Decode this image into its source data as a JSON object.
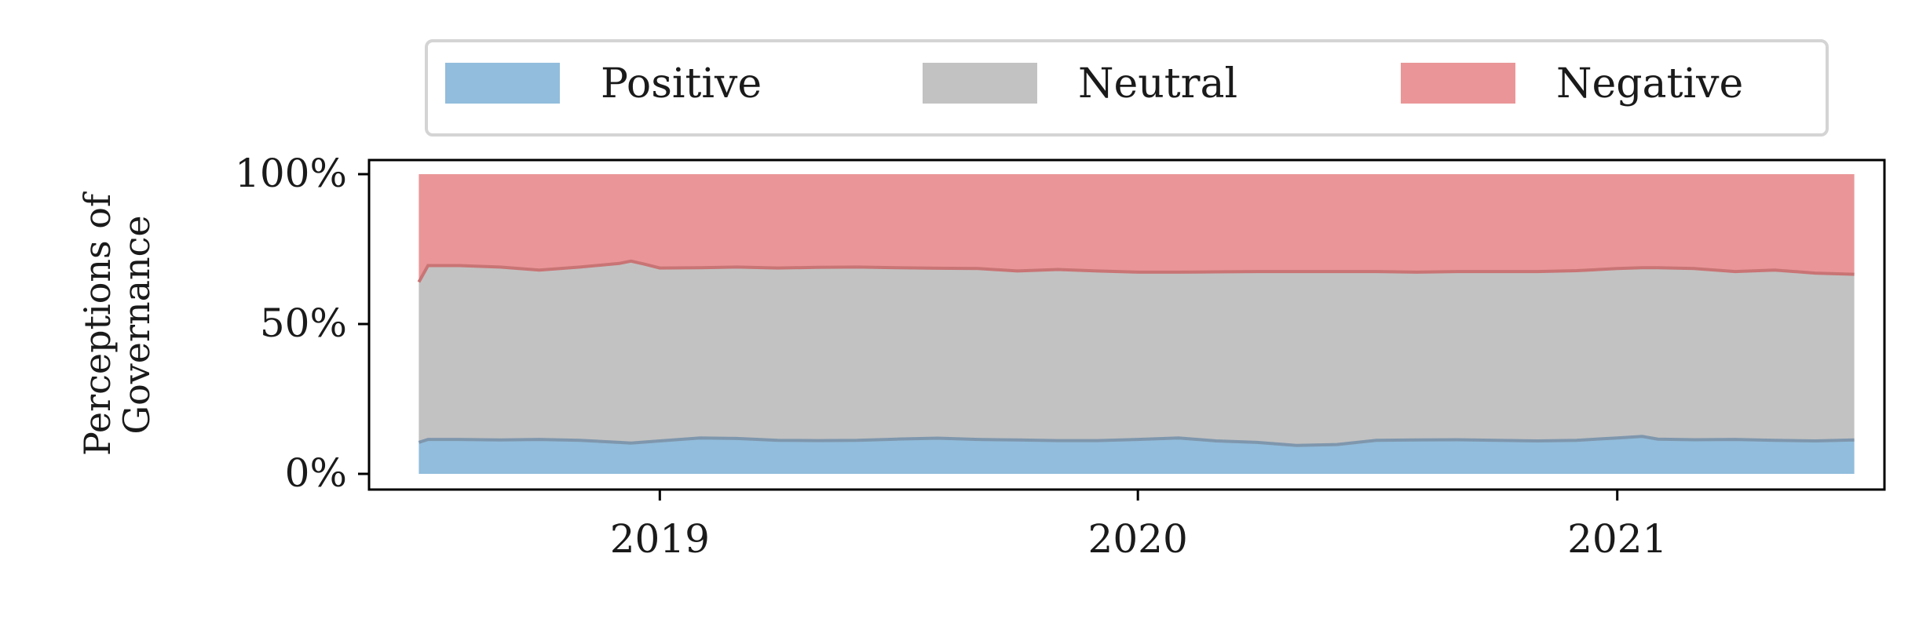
{
  "chart_data": {
    "type": "area",
    "stacked": true,
    "normalized": true,
    "title": "",
    "xlabel": "",
    "ylabel": [
      "Perceptions of",
      "Governance"
    ],
    "ylim": [
      0,
      100
    ],
    "yticks": [
      0,
      50,
      100
    ],
    "ytick_labels": [
      "0%",
      "50%",
      "100%"
    ],
    "xlim": [
      "2018-05-24",
      "2021-07-24"
    ],
    "xticks": [
      "2019-01-01",
      "2020-01-01",
      "2021-01-01"
    ],
    "xtick_labels": [
      "2019",
      "2020",
      "2021"
    ],
    "grid": false,
    "legend_position": "top",
    "x": [
      "2018-07-01",
      "2018-07-08",
      "2018-08-01",
      "2018-09-01",
      "2018-10-01",
      "2018-11-01",
      "2018-12-01",
      "2018-12-10",
      "2018-12-20",
      "2019-01-01",
      "2019-02-01",
      "2019-03-01",
      "2019-04-01",
      "2019-05-01",
      "2019-06-01",
      "2019-07-01",
      "2019-08-01",
      "2019-09-01",
      "2019-10-01",
      "2019-11-01",
      "2019-12-01",
      "2020-01-01",
      "2020-02-01",
      "2020-03-01",
      "2020-04-01",
      "2020-05-01",
      "2020-06-01",
      "2020-07-01",
      "2020-08-01",
      "2020-09-01",
      "2020-10-01",
      "2020-11-01",
      "2020-12-01",
      "2021-01-01",
      "2021-01-20",
      "2021-02-01",
      "2021-03-01",
      "2021-04-01",
      "2021-05-01",
      "2021-06-01",
      "2021-07-01"
    ],
    "series": [
      {
        "name": "Positive",
        "color": "#7fb1d6",
        "values": [
          10.5,
          11.5,
          11.5,
          11.3,
          11.5,
          11.2,
          10.5,
          10.3,
          10.6,
          11.0,
          12.0,
          11.8,
          11.2,
          11.1,
          11.2,
          11.6,
          11.9,
          11.5,
          11.3,
          11.1,
          11.1,
          11.5,
          12.0,
          11.0,
          10.5,
          9.5,
          9.8,
          11.2,
          11.3,
          11.4,
          11.2,
          11.0,
          11.2,
          12.0,
          12.5,
          11.6,
          11.4,
          11.5,
          11.2,
          11.0,
          11.3
        ]
      },
      {
        "name": "Neutral",
        "color": "#b7b7b7",
        "values": [
          53.5,
          58.0,
          58.0,
          57.7,
          56.5,
          57.8,
          59.7,
          60.7,
          59.4,
          57.7,
          56.8,
          57.2,
          57.5,
          57.8,
          57.8,
          57.2,
          56.7,
          57.0,
          56.4,
          57.1,
          56.6,
          55.8,
          55.3,
          56.4,
          57.0,
          58.0,
          57.7,
          56.3,
          56.0,
          56.1,
          56.3,
          56.5,
          56.6,
          56.5,
          56.3,
          57.2,
          57.1,
          56.0,
          56.8,
          56.0,
          55.3
        ]
      },
      {
        "name": "Negative",
        "color": "#e68486",
        "values": [
          36.0,
          30.5,
          30.5,
          31.0,
          32.0,
          31.0,
          29.8,
          29.0,
          30.0,
          31.3,
          31.2,
          31.0,
          31.3,
          31.1,
          31.0,
          31.2,
          31.4,
          31.5,
          32.3,
          31.8,
          32.3,
          32.7,
          32.7,
          32.6,
          32.5,
          32.5,
          32.5,
          32.5,
          32.7,
          32.5,
          32.5,
          32.5,
          32.2,
          31.5,
          31.2,
          31.2,
          31.5,
          32.5,
          32.0,
          33.0,
          33.4
        ]
      }
    ]
  }
}
